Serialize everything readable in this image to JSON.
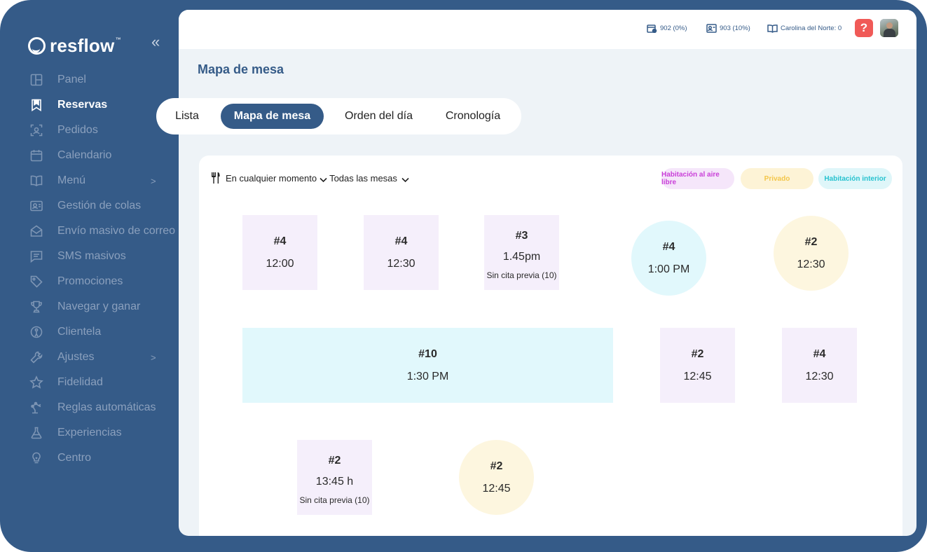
{
  "brand": {
    "name": "resflow",
    "tm": "™"
  },
  "sidebar": {
    "collapse_glyph": "«",
    "items": [
      {
        "label": "Panel",
        "icon": "layout-icon"
      },
      {
        "label": "Reservas",
        "icon": "bookmark-icon",
        "active": true
      },
      {
        "label": "Pedidos",
        "icon": "scan-icon"
      },
      {
        "label": "Calendario",
        "icon": "calendar-icon"
      },
      {
        "label": "Menú",
        "icon": "book-open-icon",
        "arrow": ">"
      },
      {
        "label": "Gestión de colas",
        "icon": "id-card-icon"
      },
      {
        "label": "Envío masivo de correo",
        "icon": "mail-icon"
      },
      {
        "label": "SMS masivos",
        "icon": "message-icon"
      },
      {
        "label": "Promociones",
        "icon": "tag-icon"
      },
      {
        "label": "Navegar y ganar",
        "icon": "trophy-icon"
      },
      {
        "label": "Clientela",
        "icon": "person-circle-icon"
      },
      {
        "label": "Ajustes",
        "icon": "wrench-icon",
        "arrow": ">"
      },
      {
        "label": "Fidelidad",
        "icon": "star-icon"
      },
      {
        "label": "Reglas automáticas",
        "icon": "robot-arm-icon"
      },
      {
        "label": "Experiencias",
        "icon": "flask-icon"
      },
      {
        "label": "Centro",
        "icon": "lightbulb-icon"
      }
    ]
  },
  "topbar": {
    "stat1": "902 (0%)",
    "stat2": "903 (10%)",
    "stat3": "Carolina del Norte: 0",
    "help": "?"
  },
  "page": {
    "title": "Mapa de mesa"
  },
  "tabs": [
    "Lista",
    "Mapa de mesa",
    "Orden del día",
    "Cronología"
  ],
  "active_tab": "Mapa de mesa",
  "filters": {
    "time": "En cualquier momento",
    "tables": "Todas las mesas"
  },
  "legend": {
    "outdoor": {
      "label": "Habitación al aire libre",
      "color": "#c93fd8"
    },
    "private": {
      "label": "Privado",
      "color": "#f3c64a"
    },
    "indoor": {
      "label": "Habitación interior",
      "color": "#26c2cf"
    }
  },
  "tables": [
    {
      "num": "#4",
      "time": "12:00",
      "note": "",
      "zone": "outdoor",
      "shape": "square"
    },
    {
      "num": "#4",
      "time": "12:30",
      "note": "",
      "zone": "outdoor",
      "shape": "square"
    },
    {
      "num": "#3",
      "time": "1.45pm",
      "note": "Sin cita previa (10)",
      "zone": "outdoor",
      "shape": "square"
    },
    {
      "num": "#4",
      "time": "1:00 PM",
      "note": "",
      "zone": "indoor",
      "shape": "circle"
    },
    {
      "num": "#2",
      "time": "12:30",
      "note": "",
      "zone": "private",
      "shape": "circle"
    },
    {
      "num": "#10",
      "time": "1:30 PM",
      "note": "",
      "zone": "indoor",
      "shape": "rect"
    },
    {
      "num": "#2",
      "time": "12:45",
      "note": "",
      "zone": "outdoor",
      "shape": "square"
    },
    {
      "num": "#4",
      "time": "12:30",
      "note": "",
      "zone": "outdoor",
      "shape": "square"
    },
    {
      "num": "#2",
      "time": "13:45 h",
      "note": "Sin cita previa (10)",
      "zone": "outdoor",
      "shape": "square"
    },
    {
      "num": "#2",
      "time": "12:45",
      "note": "",
      "zone": "private",
      "shape": "circle"
    }
  ]
}
